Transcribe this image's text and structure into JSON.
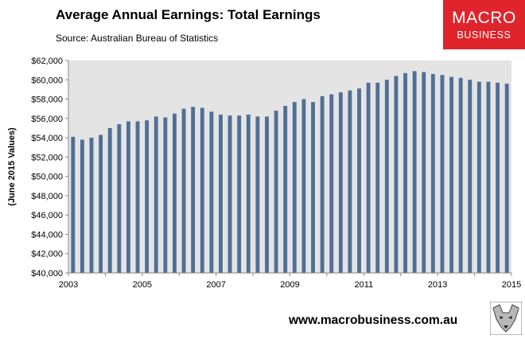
{
  "header": {
    "title": "Average Annual Earnings: Total Earnings",
    "subtitle": "Source: Australian Bureau of Statistics"
  },
  "brand": {
    "logo_line1": "MACRO",
    "logo_line2": "BUSINESS",
    "website": "www.macrobusiness.com.au",
    "logo_color": "#e0242b",
    "fox_icon": "fox-logo-icon"
  },
  "chart_data": {
    "type": "bar",
    "title": "Average Annual Earnings: Total Earnings",
    "subtitle": "Source: Australian Bureau of Statistics",
    "xlabel": "",
    "ylabel": "(June 2015 Values)",
    "ylim": [
      40000,
      62000
    ],
    "ytick_labels": [
      "$40,000",
      "$42,000",
      "$44,000",
      "$46,000",
      "$48,000",
      "$50,000",
      "$52,000",
      "$54,000",
      "$56,000",
      "$58,000",
      "$60,000",
      "$62,000"
    ],
    "yticks": [
      40000,
      42000,
      44000,
      46000,
      48000,
      50000,
      52000,
      54000,
      56000,
      58000,
      60000,
      62000
    ],
    "xtick_labels": [
      "2003",
      "2005",
      "2007",
      "2009",
      "2011",
      "2013",
      "2015"
    ],
    "xlim": [
      2003,
      2015
    ],
    "grid": false,
    "plot_background": "#e4e4e4",
    "bar_color": "#4f6f96",
    "series": [
      {
        "x": [
          2003.25,
          2003.5,
          2003.75,
          2004,
          2004.25,
          2004.5,
          2004.75,
          2005,
          2005.25,
          2005.5,
          2005.75,
          2006,
          2006.25,
          2006.5,
          2006.75,
          2007,
          2007.25,
          2007.5,
          2007.75,
          2008,
          2008.25,
          2008.5,
          2008.75,
          2009,
          2009.25,
          2009.5,
          2009.75,
          2010,
          2010.25,
          2010.5,
          2010.75,
          2011,
          2011.25,
          2011.5,
          2011.75,
          2012,
          2012.25,
          2012.5,
          2012.75,
          2013,
          2013.25,
          2013.5,
          2013.75,
          2014,
          2014.25,
          2014.5,
          2014.75,
          2015
        ],
        "values": [
          54100,
          53800,
          54000,
          54300,
          55000,
          55400,
          55700,
          55700,
          55800,
          56200,
          56100,
          56500,
          57000,
          57200,
          57100,
          56700,
          56400,
          56300,
          56300,
          56400,
          56200,
          56200,
          56800,
          57300,
          57700,
          58000,
          57700,
          58300,
          58500,
          58700,
          58900,
          59100,
          59700,
          59700,
          60000,
          60400,
          60700,
          60900,
          60800,
          60600,
          60500,
          60300,
          60200,
          60000,
          59800,
          59800,
          59700,
          59600
        ]
      }
    ]
  }
}
